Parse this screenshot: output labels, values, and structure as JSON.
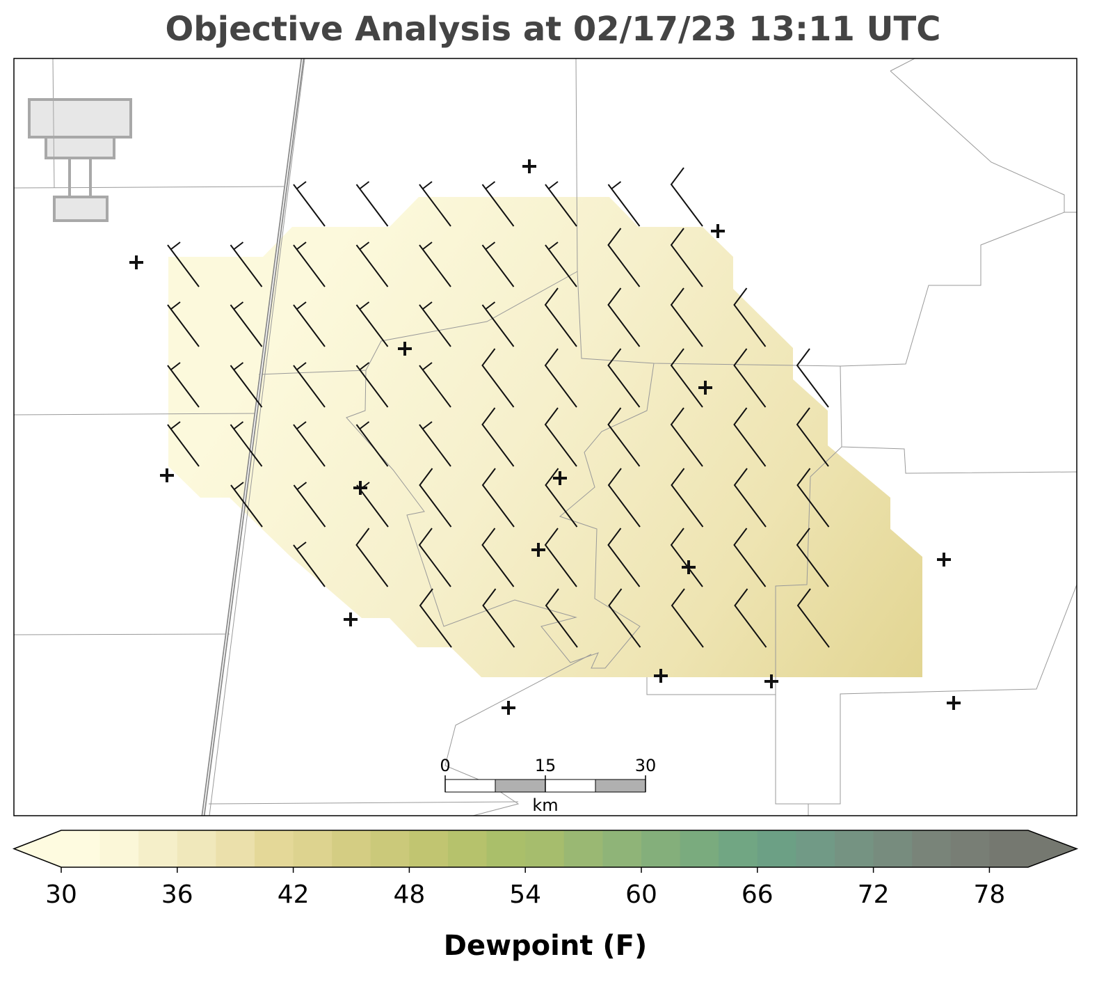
{
  "title": "Objective Analysis at 02/17/23 13:11 UTC",
  "scalebar": {
    "ticks": [
      0,
      15,
      30
    ],
    "unit": "km"
  },
  "colorbar": {
    "label": "Dewpoint (F)",
    "lim": [
      30,
      80
    ],
    "ticks": [
      30,
      36,
      42,
      48,
      54,
      60,
      66,
      72,
      78
    ],
    "colors": [
      "#fefbe0",
      "#fbf7d8",
      "#f5efc9",
      "#f0e8bb",
      "#ebe0ab",
      "#e4d898",
      "#ddd38f",
      "#d4cd83",
      "#cbc97a",
      "#c1c571",
      "#b6c26c",
      "#aabf6a",
      "#a6bd6d",
      "#9ab873",
      "#8fb478",
      "#84af7b",
      "#7aab7e",
      "#71a683",
      "#6ca085",
      "#719a86",
      "#759382",
      "#778c7e",
      "#798479",
      "#787e75",
      "#757870"
    ]
  }
}
